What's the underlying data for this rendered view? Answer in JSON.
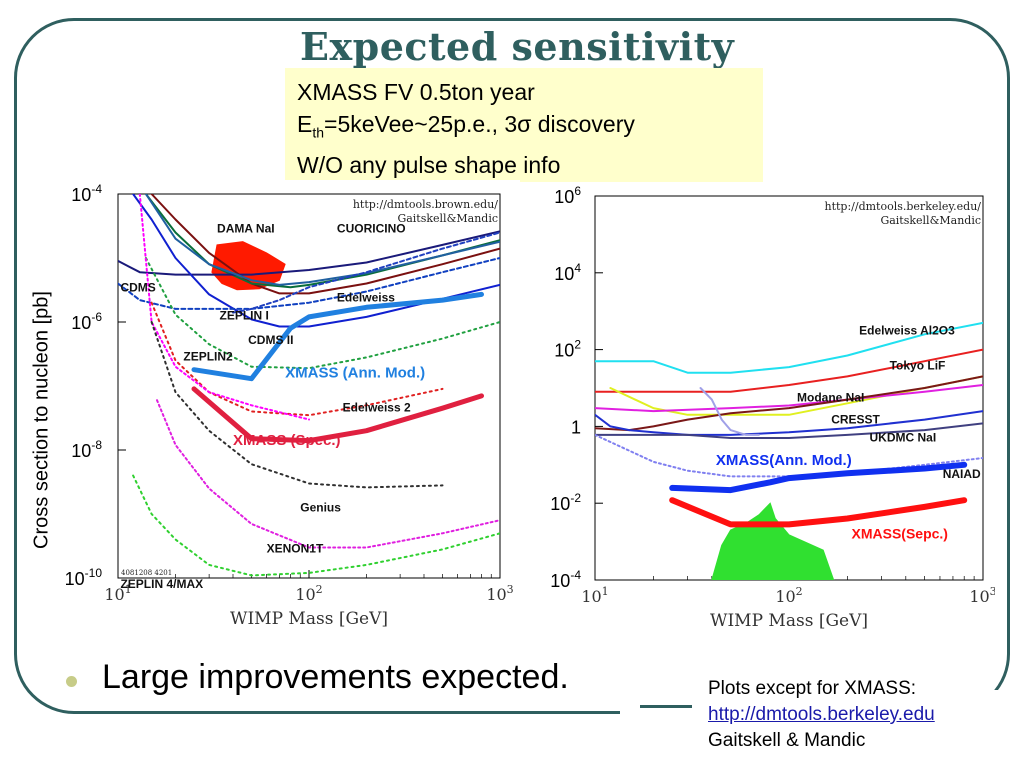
{
  "slide": {
    "title": "Expected sensitivity",
    "note_line1": "XMASS FV 0.5ton year",
    "note_line2_pre": "E",
    "note_line2_sub": "th",
    "note_line2_post": "=5keVee~25p.e., 3σ discovery",
    "note_line3": "W/O any pulse shape info",
    "bullet": "Large improvements expected.",
    "credit_line1": "Plots except for XMASS:",
    "credit_link": "http://dmtools.berkeley.edu",
    "credit_line3": "Gaitskell & Mandic",
    "colors": {
      "frame": "#2f5f5f",
      "title": "#2f5f5f",
      "note_bg": "#ffffcc"
    }
  },
  "chart_data": [
    {
      "type": "line",
      "title": "",
      "watermark": "http://dmtools.brown.edu/ Gaitskell&Mandic",
      "footer_tag": "4081208 4201",
      "xlabel": "WIMP Mass [GeV]",
      "ylabel": "Cross section to nucleon  [pb]",
      "xscale": "log",
      "yscale": "log",
      "xlim": [
        10,
        1000
      ],
      "ylim": [
        1e-10,
        0.0001
      ],
      "xticks": [
        {
          "v": 10,
          "b": "10",
          "e": "1"
        },
        {
          "v": 100,
          "b": "10",
          "e": "2"
        },
        {
          "v": 1000,
          "b": "10",
          "e": "3"
        }
      ],
      "yticks": [
        {
          "v": 0.0001,
          "b": "10",
          "e": "-4"
        },
        {
          "v": 1e-06,
          "b": "10",
          "e": "-6"
        },
        {
          "v": 1e-08,
          "b": "10",
          "e": "-8"
        },
        {
          "v": 1e-10,
          "b": "10",
          "e": "-10"
        }
      ],
      "regions": [
        {
          "name": "DAMA NaI",
          "color": "#ff1a00",
          "points": [
            [
              33,
              1.6e-05
            ],
            [
              45,
              1.8e-05
            ],
            [
              60,
              1.2e-05
            ],
            [
              75,
              8e-06
            ],
            [
              70,
              4.5e-06
            ],
            [
              55,
              3.3e-06
            ],
            [
              42,
              3.2e-06
            ],
            [
              35,
              4e-06
            ],
            [
              31,
              6e-06
            ]
          ]
        }
      ],
      "series": [
        {
          "name": "CUORICINO",
          "color": "#7a1010",
          "dash": "",
          "x": [
            15,
            20,
            30,
            50,
            70,
            100,
            200,
            500,
            1000
          ],
          "y": [
            0.0001,
            4e-05,
            1.2e-05,
            4e-06,
            2.8e-06,
            2.8e-06,
            4e-06,
            8e-06,
            1.4e-05
          ]
        },
        {
          "name": "",
          "color": "#0a6e3a",
          "dash": "",
          "x": [
            14,
            20,
            30,
            50,
            80,
            100,
            200,
            500,
            1000
          ],
          "y": [
            0.0001,
            2.5e-05,
            8e-06,
            4e-06,
            3.5e-06,
            3.8e-06,
            5.5e-06,
            1.1e-05,
            1.9e-05
          ]
        },
        {
          "name": "",
          "color": "#1a1a7a",
          "dash": "",
          "x": [
            10,
            13,
            20,
            50,
            100,
            200,
            500,
            1000
          ],
          "y": [
            9e-06,
            6e-06,
            5.5e-06,
            5.5e-06,
            6.5e-06,
            8.5e-06,
            1.6e-05,
            2.6e-05
          ]
        },
        {
          "name": "Edelweiss",
          "color": "#2060a0",
          "dash": "",
          "x": [
            14,
            20,
            30,
            50,
            70,
            100,
            200,
            500,
            1000
          ],
          "y": [
            0.0001,
            2e-05,
            8e-06,
            4.5e-06,
            3.8e-06,
            4.2e-06,
            5.8e-06,
            1.1e-05,
            1.8e-05
          ]
        },
        {
          "name": "CDMS II",
          "color": "#1020d0",
          "dash": "",
          "x": [
            12,
            15,
            20,
            30,
            50,
            70,
            100,
            200,
            500,
            1000
          ],
          "y": [
            0.0001,
            4e-05,
            1e-05,
            2.7e-06,
            1.1e-06,
            8.5e-07,
            8.5e-07,
            1.2e-06,
            2.3e-06,
            3.8e-06
          ]
        },
        {
          "name": "CDMS",
          "color": "#1040c0",
          "dash": "4 3",
          "x": [
            10,
            13,
            20,
            50,
            100,
            200,
            500,
            1000
          ],
          "y": [
            4e-06,
            2.2e-06,
            1.6e-06,
            1.6e-06,
            2e-06,
            3e-06,
            6e-06,
            1e-05
          ]
        },
        {
          "name": "ZEPLIN I",
          "color": "#2040c0",
          "dash": "4 3",
          "x": [
            40,
            50,
            70,
            100,
            200,
            500,
            1000
          ],
          "y": [
            1.4e-06,
            1.6e-06,
            2.2e-06,
            3.5e-06,
            6e-06,
            1.4e-05,
            2.5e-05
          ]
        },
        {
          "name": "ZEPLIN2",
          "color": "#20a040",
          "dash": "2 4",
          "x": [
            14,
            20,
            30,
            50,
            100,
            200,
            500,
            1000
          ],
          "y": [
            1e-05,
            1.3e-06,
            4.5e-07,
            2e-07,
            1.9e-07,
            2.8e-07,
            5.5e-07,
            1e-06
          ]
        },
        {
          "name": "Edelweiss 2",
          "color": "#e02020",
          "dash": "2 4",
          "x": [
            15,
            20,
            30,
            50,
            100,
            200,
            500
          ],
          "y": [
            2e-06,
            2.5e-07,
            8e-08,
            4e-08,
            3.5e-08,
            5e-08,
            9e-08
          ]
        },
        {
          "name": "",
          "color": "#ff00ff",
          "dash": "2 3",
          "x": [
            13,
            15,
            20,
            30,
            50,
            100
          ],
          "y": [
            0.0001,
            1e-06,
            2e-07,
            8e-08,
            5e-08,
            3e-08
          ]
        },
        {
          "name": "Genius",
          "color": "#303030",
          "dash": "2 4",
          "x": [
            15,
            20,
            30,
            50,
            100,
            200,
            500
          ],
          "y": [
            1e-06,
            8e-08,
            2e-08,
            6e-09,
            3e-09,
            2.6e-09,
            2.8e-09
          ]
        },
        {
          "name": "XENON1T",
          "color": "#e020e0",
          "dash": "2 3",
          "x": [
            16,
            20,
            30,
            50,
            100,
            200,
            500,
            1000
          ],
          "y": [
            6e-08,
            1.2e-08,
            2.5e-09,
            7e-10,
            3e-10,
            3e-10,
            5e-10,
            8e-10
          ]
        },
        {
          "name": "ZEPLIN 4/MAX",
          "color": "#30d030",
          "dash": "2 4",
          "x": [
            12,
            15,
            20,
            30,
            50,
            100,
            200,
            500,
            1000
          ],
          "y": [
            4e-09,
            1e-09,
            4e-10,
            1.6e-10,
            1.1e-10,
            1.2e-10,
            1.6e-10,
            2.8e-10,
            5e-10
          ]
        },
        {
          "name": "XMASS (Ann. Mod.)",
          "color": "#2080e0",
          "dash": "",
          "width": 5,
          "x": [
            25,
            50,
            80,
            100,
            200,
            500,
            800
          ],
          "y": [
            1.8e-07,
            1.3e-07,
            8e-07,
            1.2e-06,
            1.7e-06,
            2.2e-06,
            2.7e-06
          ]
        },
        {
          "name": "XMASS (Spec.)",
          "color": "#e02040",
          "dash": "",
          "width": 5,
          "x": [
            25,
            50,
            100,
            200,
            500,
            800
          ],
          "y": [
            9e-08,
            1.5e-08,
            1.4e-08,
            2e-08,
            4.5e-08,
            7e-08
          ]
        }
      ],
      "labels": [
        {
          "text": "DAMA NaI",
          "x": 33,
          "y": 2.5e-05
        },
        {
          "text": "CUORICINO",
          "x": 140,
          "y": 2.5e-05
        },
        {
          "text": "CDMS",
          "x": 10.3,
          "y": 3e-06
        },
        {
          "text": "Edelweiss",
          "x": 140,
          "y": 2.1e-06
        },
        {
          "text": "ZEPLIN I",
          "x": 34,
          "y": 1.1e-06
        },
        {
          "text": "CDMS II",
          "x": 48,
          "y": 4.5e-07
        },
        {
          "text": "ZEPLIN2",
          "x": 22,
          "y": 2.5e-07
        },
        {
          "text": "XMASS (Ann. Mod.)",
          "x": 75,
          "y": 1.35e-07,
          "color": "#2080e0",
          "size": 15
        },
        {
          "text": "Edelweiss 2",
          "x": 150,
          "y": 4e-08
        },
        {
          "text": "XMASS (Spec.)",
          "x": 40,
          "y": 1.2e-08,
          "color": "#e02040",
          "size": 15
        },
        {
          "text": "Genius",
          "x": 90,
          "y": 1.1e-09
        },
        {
          "text": "XENON1T",
          "x": 60,
          "y": 2.5e-10
        },
        {
          "text": "ZEPLIN 4/MAX",
          "x": 10.3,
          "y": 7e-11
        }
      ]
    },
    {
      "type": "line",
      "title": "",
      "watermark": "http://dmtools.berkeley.edu/ Gaitskell&Mandic",
      "xlabel": "WIMP Mass [GeV]",
      "ylabel": "",
      "xscale": "log",
      "yscale": "log",
      "xlim": [
        10,
        1000
      ],
      "ylim": [
        0.0001,
        1000000.0
      ],
      "xticks": [
        {
          "v": 10,
          "b": "10",
          "e": "1"
        },
        {
          "v": 100,
          "b": "10",
          "e": "2"
        },
        {
          "v": 1000,
          "b": "10",
          "e": "3"
        }
      ],
      "yticks": [
        {
          "v": 1000000.0,
          "b": "10",
          "e": "6"
        },
        {
          "v": 10000.0,
          "b": "10",
          "e": "4"
        },
        {
          "v": 100.0,
          "b": "10",
          "e": "2"
        },
        {
          "v": 1,
          "b": "1",
          "e": ""
        },
        {
          "v": 0.01,
          "b": "10",
          "e": "-2"
        },
        {
          "v": 0.0001,
          "b": "10",
          "e": "-4"
        }
      ],
      "regions": [
        {
          "name": "",
          "color": "#30e030",
          "points": [
            [
              40,
              0.0001
            ],
            [
              45,
              0.0008
            ],
            [
              50,
              0.002
            ],
            [
              60,
              0.003
            ],
            [
              70,
              0.005
            ],
            [
              80,
              0.01
            ],
            [
              85,
              0.004
            ],
            [
              100,
              0.0015
            ],
            [
              150,
              0.0006
            ],
            [
              170,
              0.0001
            ]
          ]
        }
      ],
      "series": [
        {
          "name": "Edelweiss Al2O3",
          "color": "#20e0f0",
          "dash": "",
          "x": [
            10,
            20,
            30,
            50,
            100,
            200,
            500,
            1000
          ],
          "y": [
            50,
            50,
            25,
            25,
            35,
            70,
            250,
            500
          ]
        },
        {
          "name": "Tokyo LiF",
          "color": "#e82020",
          "dash": "",
          "x": [
            10,
            20,
            50,
            100,
            200,
            500,
            1000
          ],
          "y": [
            8,
            8,
            8,
            12,
            20,
            50,
            100
          ]
        },
        {
          "name": "Modane NaI",
          "color": "#e0f020",
          "dash": "",
          "x": [
            12,
            20,
            30,
            50,
            100,
            200,
            500,
            1000
          ],
          "y": [
            10,
            3,
            2,
            2,
            2,
            4,
            10,
            20
          ]
        },
        {
          "name": "",
          "color": "#e020e0",
          "dash": "",
          "x": [
            10,
            20,
            50,
            100,
            200,
            500,
            1000
          ],
          "y": [
            3,
            2.5,
            3,
            3.5,
            5,
            8,
            12
          ]
        },
        {
          "name": "CRESST",
          "color": "#7a1818",
          "dash": "",
          "x": [
            10,
            15,
            20,
            30,
            50,
            100,
            200,
            500,
            1000
          ],
          "y": [
            0.9,
            0.8,
            1,
            1.5,
            2.2,
            3,
            5,
            10,
            20
          ]
        },
        {
          "name": "UKDMC NaI",
          "color": "#2030d0",
          "dash": "",
          "x": [
            10,
            12,
            15,
            20,
            30,
            50,
            100,
            200,
            500,
            1000
          ],
          "y": [
            2,
            1,
            0.8,
            0.7,
            0.6,
            0.6,
            0.7,
            0.9,
            1.5,
            2.5
          ]
        },
        {
          "name": "",
          "color": "#404080",
          "dash": "",
          "x": [
            10,
            20,
            30,
            50,
            100,
            200,
            500,
            1000
          ],
          "y": [
            0.6,
            0.6,
            0.6,
            0.5,
            0.5,
            0.6,
            0.8,
            1.2
          ]
        },
        {
          "name": "",
          "color": "#a0a0e8",
          "dash": "",
          "x": [
            35,
            40,
            45,
            50,
            60,
            70
          ],
          "y": [
            10,
            5,
            1.5,
            0.8,
            0.6,
            0.6
          ]
        },
        {
          "name": "NAIAD",
          "color": "#8080f0",
          "dash": "2 3",
          "x": [
            10,
            20,
            30,
            50,
            100,
            200,
            500,
            1000
          ],
          "y": [
            0.6,
            0.12,
            0.07,
            0.05,
            0.05,
            0.06,
            0.1,
            0.15
          ]
        },
        {
          "name": "XMASS(Ann. Mod.)",
          "color": "#1030f0",
          "dash": "",
          "width": 6,
          "x": [
            25,
            50,
            80,
            100,
            200,
            500,
            800
          ],
          "y": [
            0.025,
            0.022,
            0.035,
            0.045,
            0.06,
            0.08,
            0.1
          ]
        },
        {
          "name": "XMASS(Sepc.)",
          "color": "#ff1010",
          "dash": "",
          "width": 6,
          "x": [
            25,
            50,
            100,
            200,
            500,
            800
          ],
          "y": [
            0.012,
            0.0028,
            0.0028,
            0.004,
            0.008,
            0.012
          ]
        }
      ],
      "labels": [
        {
          "text": "Edelweiss Al2O3",
          "x": 230,
          "y": 250
        },
        {
          "text": "Tokyo LiF",
          "x": 330,
          "y": 30
        },
        {
          "text": "Modane NaI",
          "x": 110,
          "y": 4.5
        },
        {
          "text": "CRESST",
          "x": 165,
          "y": 1.2
        },
        {
          "text": "UKDMC NaI",
          "x": 260,
          "y": 0.4
        },
        {
          "text": "XMASS(Ann. Mod.)",
          "x": 42,
          "y": 0.1,
          "color": "#1030f0",
          "size": 15
        },
        {
          "text": "NAIAD",
          "x": 620,
          "y": 0.045
        },
        {
          "text": "XMASS(Sepc.)",
          "x": 210,
          "y": 0.0012,
          "color": "#ff1010",
          "size": 14
        }
      ]
    }
  ]
}
